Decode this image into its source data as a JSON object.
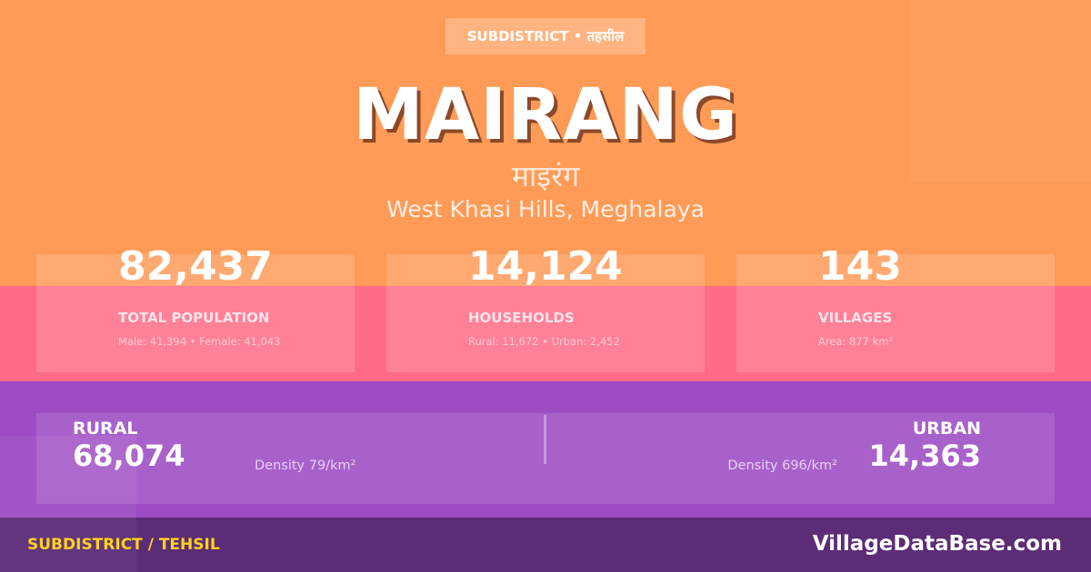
{
  "badge": "SUBDISTRICT • तहसील",
  "title": "MAIRANG",
  "title_hindi": "माइरंग",
  "location": "West Khasi Hills, Meghalaya",
  "stats": [
    {
      "value": "82,437",
      "label": "TOTAL POPULATION",
      "sub": "Male: 41,394 • Female: 41,043"
    },
    {
      "value": "14,124",
      "label": "HOUSEHOLDS",
      "sub": "Rural: 11,672 • Urban: 2,452"
    },
    {
      "value": "143",
      "label": "VILLAGES",
      "sub": "Area: 877 km²"
    }
  ],
  "rural": {
    "label": "RURAL",
    "value": "68,074",
    "density": "Density 79/km²"
  },
  "urban": {
    "label": "URBAN",
    "value": "14,363",
    "density": "Density 696/km²"
  },
  "footer": {
    "left": "SUBDISTRICT / TEHSIL",
    "right": "VillageDataBase.com"
  },
  "colors": {
    "orange": "#FF9B57",
    "pink": "#FF6B86",
    "purple": "#9D4CC4",
    "footer": "#5C2C76",
    "accent": "#FFD21F"
  }
}
